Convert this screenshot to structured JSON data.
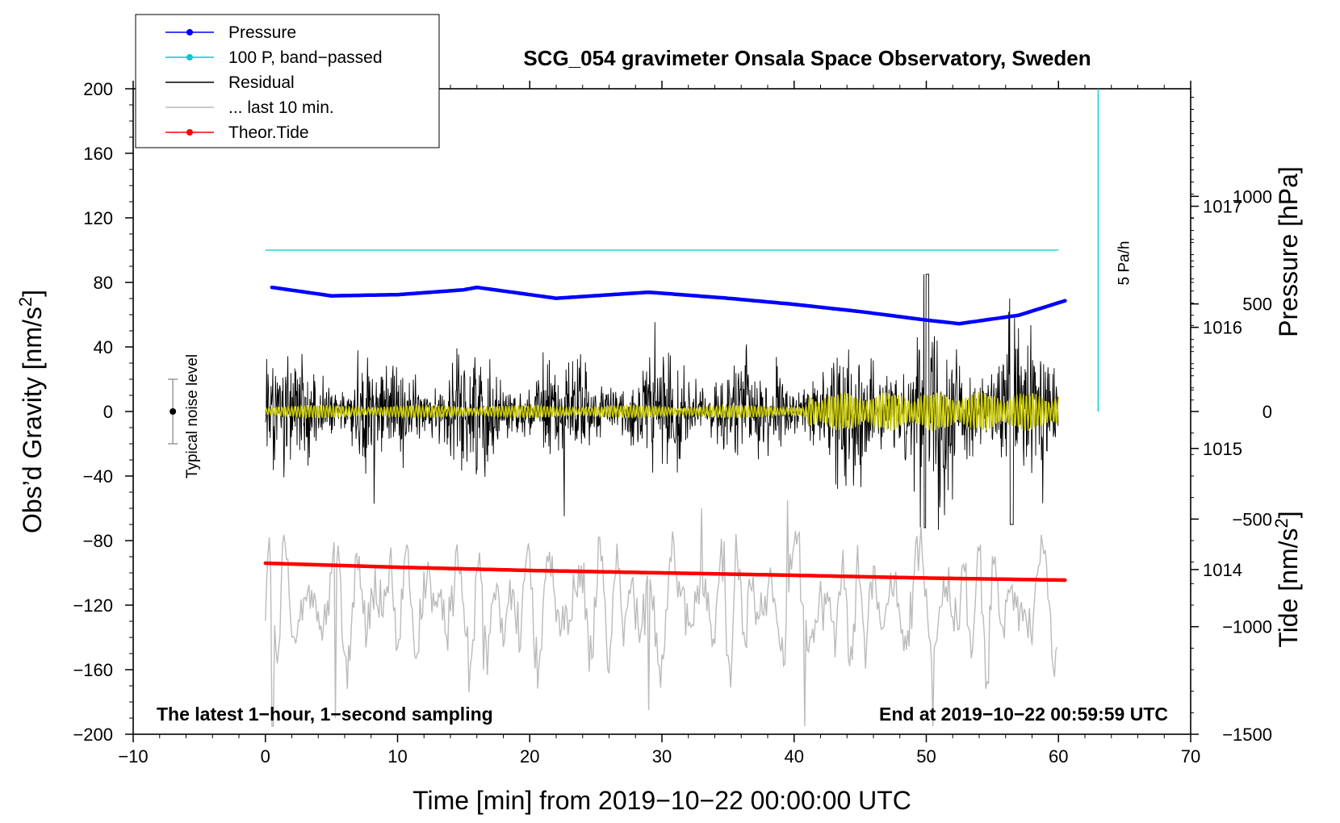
{
  "chart_data": {
    "type": "line",
    "title": "SCG_054 gravimeter Onsala Space Observatory, Sweden",
    "xlabel": "Time [min] from 2019−10−22 00:00:00 UTC",
    "ylabel_left": "Obs’d Gravity [nm/s",
    "ylabel_left_sup": "2",
    "ylabel_left_end": "]",
    "ylabel_right_pressure": "Pressure [hPa]",
    "ylabel_right_tide": "Tide [nm/s",
    "ylabel_right_tide_sup": "2",
    "ylabel_right_tide_end": "]",
    "xlim": [
      -10,
      70
    ],
    "ylim": [
      -200,
      200
    ],
    "pressure_ylim_hPa": [
      1012.64,
      1017.97
    ],
    "tide_ylim": [
      -1500,
      1500
    ],
    "x_ticks": [
      "−10",
      "0",
      "10",
      "20",
      "30",
      "40",
      "50",
      "60",
      "70"
    ],
    "x_tick_values": [
      -10,
      0,
      10,
      20,
      30,
      40,
      50,
      60,
      70
    ],
    "y_ticks": [
      "200",
      "160",
      "120",
      "80",
      "40",
      "0",
      "−40",
      "−80",
      "−120",
      "−160",
      "−200"
    ],
    "y_tick_values": [
      200,
      160,
      120,
      80,
      40,
      0,
      -40,
      -80,
      -120,
      -160,
      -200
    ],
    "pressure_ticks": [
      "1017",
      "1016",
      "1015",
      "1014"
    ],
    "pressure_tick_values": [
      1017,
      1016,
      1015,
      1014
    ],
    "tide_ticks": [
      "1000",
      "500",
      "0",
      "−500",
      "−1000",
      "−1500"
    ],
    "tide_tick_values": [
      1000,
      500,
      0,
      -500,
      -1000,
      -1500
    ],
    "legend": [
      {
        "label": "Pressure",
        "color": "#0000ff",
        "marker": true
      },
      {
        "label": "100 P, band−passed",
        "color": "#00cccc",
        "marker": true
      },
      {
        "label": "Residual",
        "color": "#000000",
        "marker": false
      },
      {
        "label": "... last 10 min.",
        "color": "#bbbbbb",
        "marker": false
      },
      {
        "label": "Theor.Tide",
        "color": "#ff0000",
        "marker": true
      }
    ],
    "series": [
      {
        "name": "Pressure",
        "color": "#0000ff",
        "units": "hPa",
        "x": [
          0.5,
          5,
          10,
          15,
          16,
          22,
          29,
          35,
          40,
          45,
          50,
          52.5,
          57,
          60.5
        ],
        "y": [
          1016.33,
          1016.26,
          1016.27,
          1016.31,
          1016.33,
          1016.24,
          1016.29,
          1016.24,
          1016.19,
          1016.13,
          1016.06,
          1016.03,
          1016.1,
          1016.22
        ]
      },
      {
        "name": "100 P, band-passed",
        "color": "#00cccc",
        "units": "nm/s2",
        "x": [
          0,
          60
        ],
        "y": [
          100,
          100
        ]
      },
      {
        "name": "Residual",
        "color": "#000000",
        "units": "nm/s2",
        "x_range": [
          0,
          60
        ],
        "typical_amplitude": 20,
        "range": [
          -75,
          85
        ]
      },
      {
        "name": "Residual smoothed",
        "color": "#cccc00",
        "units": "nm/s2",
        "x_range": [
          0,
          60
        ],
        "typical_amplitude": 4,
        "max_amplitude": 12
      },
      {
        "name": "... last 10 min.",
        "color": "#bbbbbb",
        "units": "nm/s2",
        "x_range": [
          0,
          60
        ],
        "offset": -120,
        "range": [
          -195,
          -55
        ]
      },
      {
        "name": "Theor.Tide",
        "color": "#ff0000",
        "units": "nm/s2",
        "x": [
          0,
          10,
          20,
          30,
          40,
          50,
          60.5
        ],
        "y": [
          -94,
          -96.5,
          -98.5,
          -100,
          -101.5,
          -103.2,
          -104.5
        ]
      }
    ],
    "rate_annotation": {
      "label": "5 Pa/h",
      "x": 63,
      "y_from": 0,
      "y_to": 200
    },
    "noise_annotation": {
      "label": "Typical noise level",
      "x": -7,
      "center": 0,
      "half_range": 20
    },
    "footer_left": "The latest 1−hour, 1−second sampling",
    "footer_right": "End at 2019−10−22 00:59:59 UTC"
  }
}
